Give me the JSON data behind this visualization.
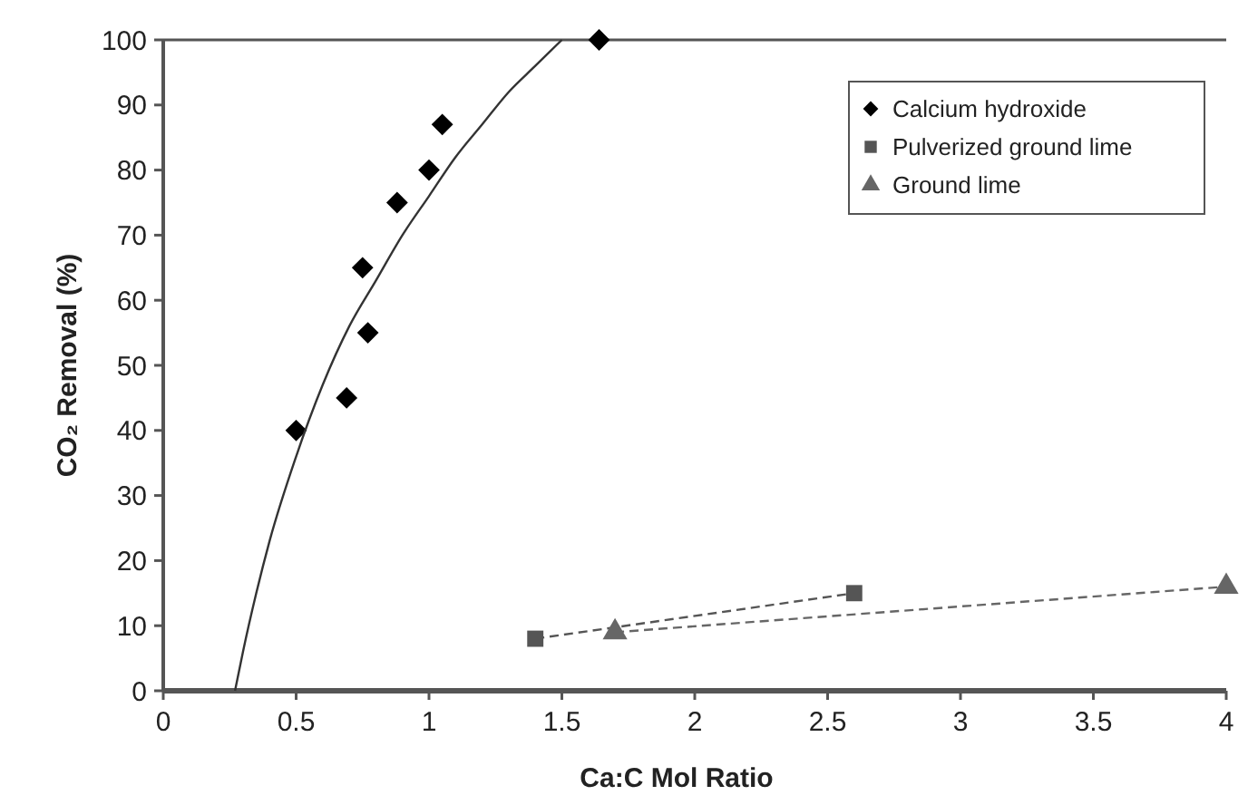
{
  "chart_data": {
    "type": "scatter",
    "xlabel": "Ca:C Mol Ratio",
    "ylabel": "CO₂ Removal (%)",
    "xlim": [
      0,
      4
    ],
    "ylim": [
      0,
      100
    ],
    "xticks": [
      0,
      0.5,
      1,
      1.5,
      2,
      2.5,
      3,
      3.5,
      4
    ],
    "yticks": [
      0,
      10,
      20,
      30,
      40,
      50,
      60,
      70,
      80,
      90,
      100
    ],
    "grid": false,
    "legend": "top right",
    "series": [
      {
        "name": "Calcium hydroxide",
        "color": "#000000",
        "marker": "diamond",
        "x": [
          0.5,
          0.69,
          0.77,
          0.75,
          0.88,
          1.0,
          1.05,
          1.64
        ],
        "values": [
          40,
          45,
          55,
          65,
          75,
          80,
          87,
          100
        ]
      },
      {
        "name": "Pulverized ground lime",
        "color": "#555555",
        "type": "line",
        "marker": "square",
        "line_style": "dashed",
        "x": [
          1.4,
          2.6
        ],
        "values": [
          8,
          15
        ]
      },
      {
        "name": "Ground lime",
        "color": "#666666",
        "type": "line",
        "marker": "triangle",
        "line_style": "dashed",
        "x": [
          1.7,
          4.0
        ],
        "values": [
          9,
          16
        ]
      },
      {
        "color": "#333333",
        "type": "line",
        "marker": "none",
        "line_style": "solid",
        "x": [
          0.27,
          0.3,
          0.35,
          0.4,
          0.5,
          0.6,
          0.7,
          0.8,
          0.9,
          1.0,
          1.1,
          1.2,
          1.3,
          1.4,
          1.5
        ],
        "values": [
          0,
          6,
          15,
          23,
          36,
          47,
          56,
          63,
          70,
          76,
          82,
          87,
          92,
          96,
          100
        ]
      }
    ]
  }
}
